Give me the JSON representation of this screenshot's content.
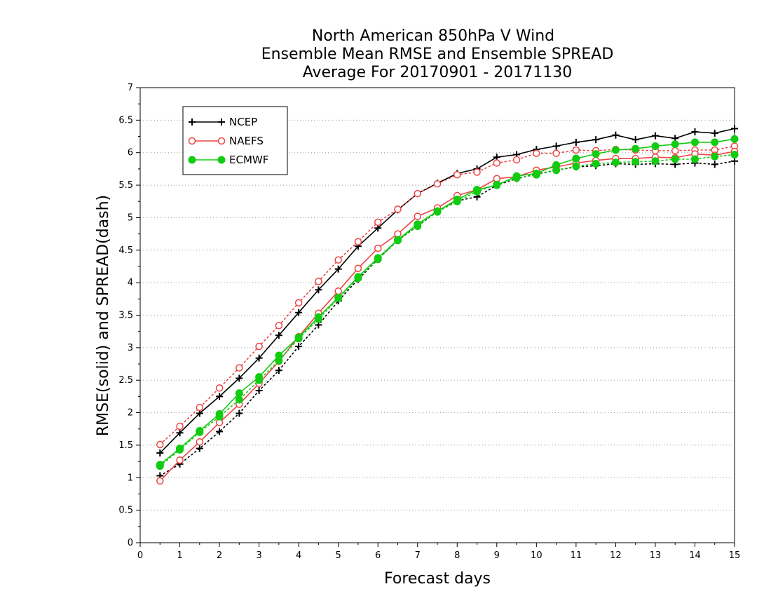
{
  "chart_data": {
    "type": "line",
    "title": [
      "North American 850hPa V Wind",
      "Ensemble Mean RMSE and Ensemble SPREAD",
      "Average For 20170901 - 20171130"
    ],
    "xlabel": "Forecast days",
    "ylabel": "RMSE(solid) and SPREAD(dash)",
    "xlim": [
      0,
      15
    ],
    "ylim": [
      0,
      7
    ],
    "x_ticks": [
      0,
      1,
      2,
      3,
      4,
      5,
      6,
      7,
      8,
      9,
      10,
      11,
      12,
      13,
      14,
      15
    ],
    "y_ticks": [
      0,
      0.5,
      1,
      1.5,
      2,
      2.5,
      3,
      3.5,
      4,
      4.5,
      5,
      5.5,
      6,
      6.5,
      7
    ],
    "y_tick_labels": [
      "0",
      "0.5",
      "1",
      "1.5",
      "2",
      "2.5",
      "3",
      "3.5",
      "4",
      "4.5",
      "5",
      "5.5",
      "6",
      "6.5",
      "7"
    ],
    "grid": true,
    "legend_position": "top-left",
    "x": [
      0.5,
      1,
      1.5,
      2,
      2.5,
      3,
      3.5,
      4,
      4.5,
      5,
      5.5,
      6,
      6.5,
      7,
      7.5,
      8,
      8.5,
      9,
      9.5,
      10,
      10.5,
      11,
      11.5,
      12,
      12.5,
      13,
      13.5,
      14,
      14.5,
      15
    ],
    "series": [
      {
        "name": "NCEP",
        "color": "#000000",
        "marker": "plus",
        "rmse": [
          1.38,
          1.69,
          1.99,
          2.25,
          2.53,
          2.84,
          3.19,
          3.54,
          3.89,
          4.21,
          4.56,
          4.84,
          5.12,
          5.37,
          5.53,
          5.68,
          5.75,
          5.93,
          5.97,
          6.05,
          6.1,
          6.16,
          6.2,
          6.27,
          6.2,
          6.26,
          6.22,
          6.32,
          6.3,
          6.37
        ],
        "spread": [
          1.03,
          1.21,
          1.45,
          1.71,
          1.99,
          2.34,
          2.65,
          3.02,
          3.35,
          3.72,
          4.05,
          4.36,
          4.65,
          4.87,
          5.1,
          5.26,
          5.32,
          5.5,
          5.6,
          5.67,
          5.73,
          5.78,
          5.8,
          5.83,
          5.82,
          5.83,
          5.82,
          5.84,
          5.82,
          5.87
        ]
      },
      {
        "name": "NAEFS",
        "color": "#ee4444",
        "marker": "open-circle",
        "rmse": [
          0.95,
          1.27,
          1.55,
          1.85,
          2.13,
          2.45,
          2.79,
          3.17,
          3.53,
          3.87,
          4.22,
          4.53,
          4.75,
          5.02,
          5.15,
          5.34,
          5.43,
          5.6,
          5.63,
          5.73,
          5.78,
          5.84,
          5.88,
          5.91,
          5.91,
          5.93,
          5.92,
          5.98,
          5.96,
          6.02
        ],
        "spread": [
          1.51,
          1.79,
          2.08,
          2.38,
          2.69,
          3.02,
          3.34,
          3.69,
          4.02,
          4.35,
          4.63,
          4.93,
          5.13,
          5.37,
          5.52,
          5.66,
          5.7,
          5.84,
          5.89,
          5.99,
          5.99,
          6.04,
          6.03,
          6.05,
          6.04,
          6.03,
          6.03,
          6.04,
          6.04,
          6.1
        ]
      },
      {
        "name": "ECMWF",
        "color": "#11cc11",
        "marker": "filled-circle",
        "rmse": [
          1.2,
          1.45,
          1.72,
          1.98,
          2.3,
          2.55,
          2.88,
          3.16,
          3.47,
          3.77,
          4.09,
          4.38,
          4.66,
          4.9,
          5.1,
          5.28,
          5.43,
          5.5,
          5.64,
          5.68,
          5.81,
          5.91,
          5.98,
          6.04,
          6.06,
          6.1,
          6.13,
          6.16,
          6.16,
          6.21
        ],
        "spread": [
          1.18,
          1.43,
          1.7,
          1.94,
          2.2,
          2.5,
          2.8,
          3.14,
          3.44,
          3.76,
          4.07,
          4.36,
          4.65,
          4.87,
          5.09,
          5.25,
          5.4,
          5.51,
          5.61,
          5.66,
          5.73,
          5.79,
          5.83,
          5.85,
          5.86,
          5.87,
          5.9,
          5.9,
          5.94,
          5.97
        ]
      }
    ]
  }
}
